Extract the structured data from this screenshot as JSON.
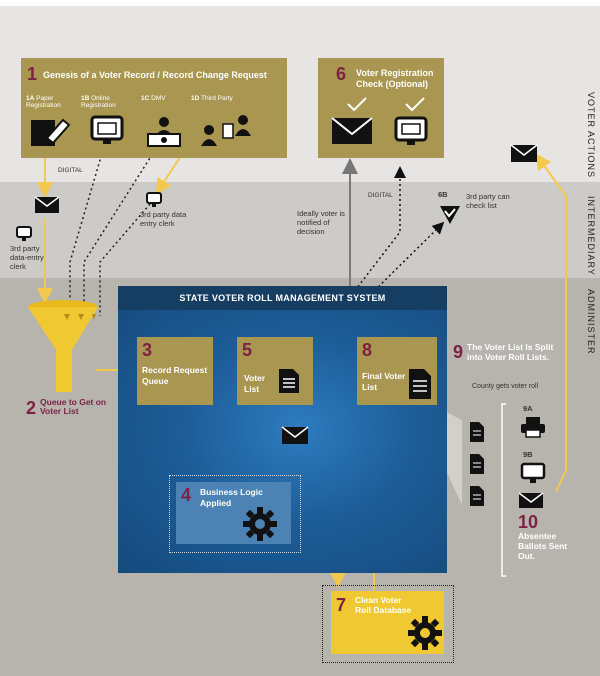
{
  "lanes": {
    "voter_actions": "VOTER ACTIONS",
    "intermediary": "INTERMEDIARY",
    "administer": "ADMINISTER"
  },
  "step1": {
    "num": "1",
    "title": "Genesis of a Voter Record / Record Change Request",
    "items": [
      {
        "id": "1A",
        "label": "Paper Registration"
      },
      {
        "id": "1B",
        "label": "Online Registration"
      },
      {
        "id": "1C",
        "label": "DMV"
      },
      {
        "id": "1D",
        "label": "Third Party"
      }
    ]
  },
  "step6": {
    "num": "6",
    "title": "Voter Registration Check (Optional)"
  },
  "labels": {
    "digital_left": "DIGITAL",
    "digital_right": "DIGITAL",
    "clerk_left": "3rd party data-entry clerk",
    "clerk_mid": "3rd party data entry clerk",
    "notified": "Ideally voter is notified of decision",
    "check_list": "3rd party can check list"
  },
  "step6b": {
    "id": "6B"
  },
  "system": {
    "title": "STATE VOTER ROLL MANAGEMENT SYSTEM"
  },
  "step2": {
    "num": "2",
    "title": "Queue to Get on Voter List"
  },
  "step3": {
    "num": "3",
    "title": "Record Request Queue"
  },
  "step4": {
    "num": "4",
    "title": "Business Logic Applied"
  },
  "step5": {
    "num": "5",
    "title": "Voter List"
  },
  "step7": {
    "num": "7",
    "title": "Clean Voter Roll Database"
  },
  "step8": {
    "num": "8",
    "title": "Final Voter List"
  },
  "step9": {
    "num": "9",
    "title": "The Voter List Is Split into Voter Roll Lists.",
    "note": "County gets voter roll"
  },
  "step9a": {
    "id": "9A"
  },
  "step9b": {
    "id": "9B"
  },
  "step10": {
    "num": "10",
    "title": "Absentee Ballots Sent Out."
  },
  "colors": {
    "olive": "#a89651",
    "navy": "#163e63",
    "blue": "#1d5d98",
    "maroon": "#7d2245",
    "funnel": "#f0c832",
    "arrow": "#f2c94c",
    "yellow_box": "#f0c832"
  }
}
